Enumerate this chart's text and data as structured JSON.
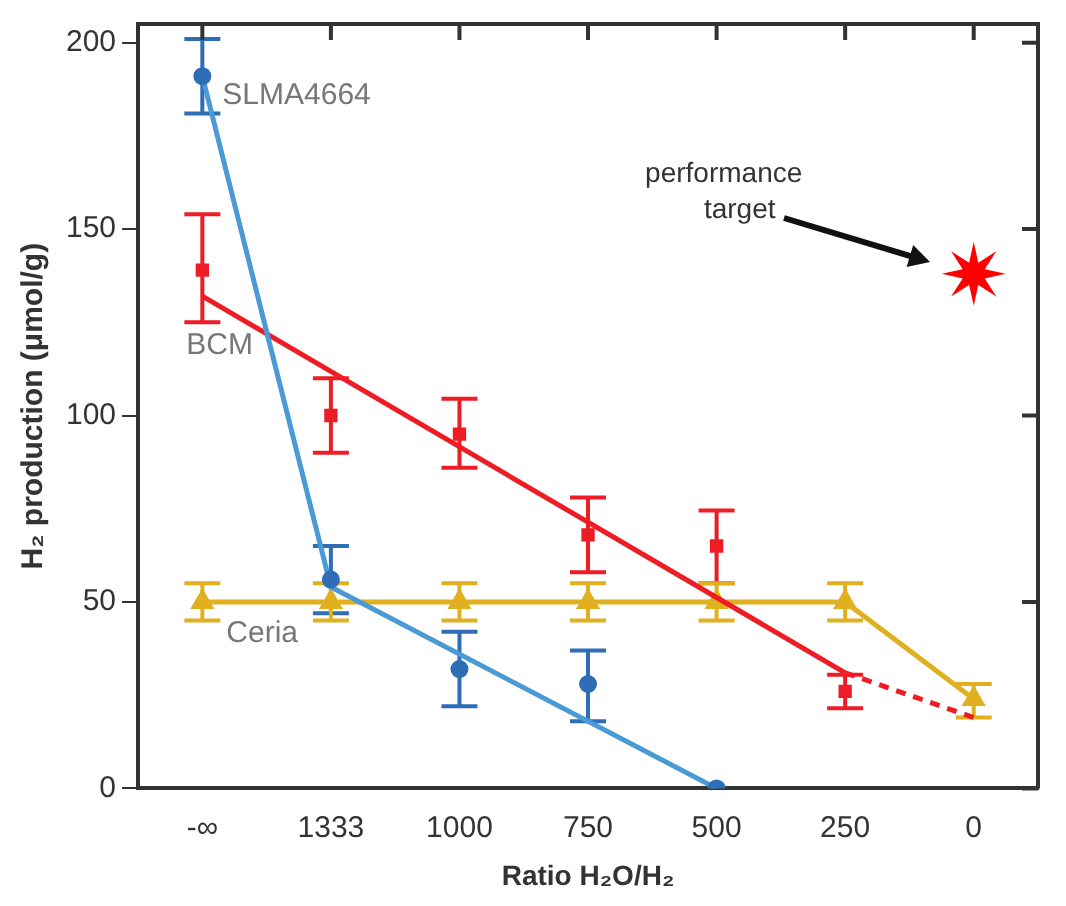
{
  "chart_data": {
    "type": "scatter",
    "xlabel": "Ratio H₂O/H₂",
    "ylabel": "H₂ production (μmol/g)",
    "categories": [
      "-∞",
      "1333",
      "1000",
      "750",
      "500",
      "250",
      "0"
    ],
    "ylim": [
      0,
      205
    ],
    "yticks": [
      0,
      50,
      100,
      150,
      200
    ],
    "grid": false,
    "legend": false,
    "annotations": [
      "performance target"
    ],
    "series": [
      {
        "name": "SLMA4664",
        "color": "#2f6db5",
        "marker": "circle",
        "values": [
          191,
          56,
          32,
          28,
          0,
          null,
          null
        ],
        "errors": [
          [
            181,
            201
          ],
          [
            47,
            65
          ],
          [
            22,
            42
          ],
          [
            18,
            37
          ],
          null,
          null,
          null
        ]
      },
      {
        "type": "line",
        "color": "#4a9ad6",
        "marker": "none",
        "values": [
          191,
          54,
          null,
          null,
          0,
          null,
          null
        ]
      },
      {
        "name": "BCM",
        "color": "#ee1c24",
        "marker": "square",
        "values": [
          139,
          100,
          95,
          68,
          65,
          26,
          null
        ],
        "errors": [
          [
            125,
            154
          ],
          [
            90,
            110
          ],
          [
            86,
            104.5
          ],
          [
            58,
            78
          ],
          [
            55,
            74.5
          ],
          [
            21.5,
            30.5
          ],
          null
        ]
      },
      {
        "type": "line",
        "color": "#ee1c24",
        "marker": "none",
        "values": [
          132,
          null,
          null,
          null,
          null,
          31,
          null
        ]
      },
      {
        "type": "line",
        "color": "#ee1c24",
        "marker": "none",
        "line_style": "dashed",
        "values": [
          null,
          null,
          null,
          null,
          null,
          31,
          19
        ]
      },
      {
        "name": "Ceria",
        "type": "line",
        "color": "#e0b020",
        "marker": "triangle",
        "values": [
          50,
          50,
          50,
          50,
          50,
          50,
          24
        ],
        "errors": [
          5,
          5,
          5,
          5,
          5,
          5,
          [
            19,
            28
          ]
        ]
      },
      {
        "type": "scatter",
        "color": "#ff0000",
        "marker": "star",
        "values": [
          null,
          null,
          null,
          null,
          null,
          null,
          138
        ]
      }
    ]
  }
}
